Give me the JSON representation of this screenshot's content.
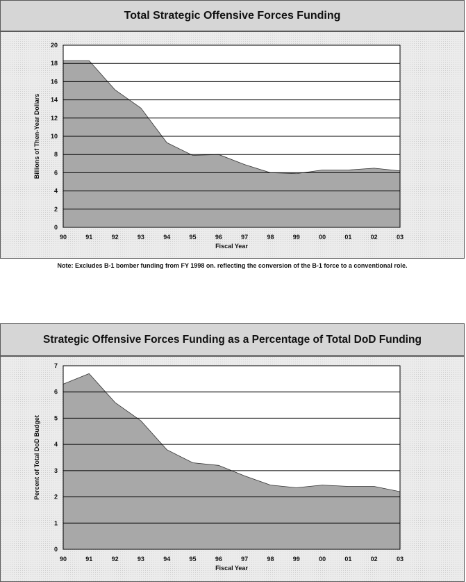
{
  "colors": {
    "area_fill": "#a8a8a8",
    "gridline": "#000000",
    "header_bg": "#d6d6d6"
  },
  "note": "Note:  Excludes B-1 bomber funding from FY 1998 on. reflecting the conversion of the B-1 force to a conventional role.",
  "chart_data": [
    {
      "type": "area",
      "title": "Total Strategic Offensive Forces Funding",
      "xlabel": "Fiscal Year",
      "ylabel": "Billions of Then-Year Dollars",
      "categories": [
        "90",
        "91",
        "92",
        "93",
        "94",
        "95",
        "96",
        "97",
        "98",
        "99",
        "00",
        "01",
        "02",
        "03"
      ],
      "values": [
        18.3,
        18.3,
        15.1,
        13.1,
        9.3,
        7.9,
        8.0,
        6.9,
        6.0,
        5.9,
        6.3,
        6.3,
        6.5,
        6.2
      ],
      "ylim": [
        0,
        20
      ],
      "yticks": [
        0,
        2,
        4,
        6,
        8,
        10,
        12,
        14,
        16,
        18,
        20
      ],
      "grid": true
    },
    {
      "type": "area",
      "title": "Strategic Offensive Forces Funding as a Percentage of Total DoD Funding",
      "xlabel": "Fiscal Year",
      "ylabel": "Percent of Total DoD Budget",
      "categories": [
        "90",
        "91",
        "92",
        "93",
        "94",
        "95",
        "96",
        "97",
        "98",
        "99",
        "00",
        "01",
        "02",
        "03"
      ],
      "values": [
        6.3,
        6.7,
        5.6,
        4.9,
        3.8,
        3.3,
        3.2,
        2.8,
        2.45,
        2.35,
        2.45,
        2.4,
        2.4,
        2.2
      ],
      "ylim": [
        0,
        7
      ],
      "yticks": [
        0,
        1,
        2,
        3,
        4,
        5,
        6,
        7
      ],
      "grid": true
    }
  ]
}
